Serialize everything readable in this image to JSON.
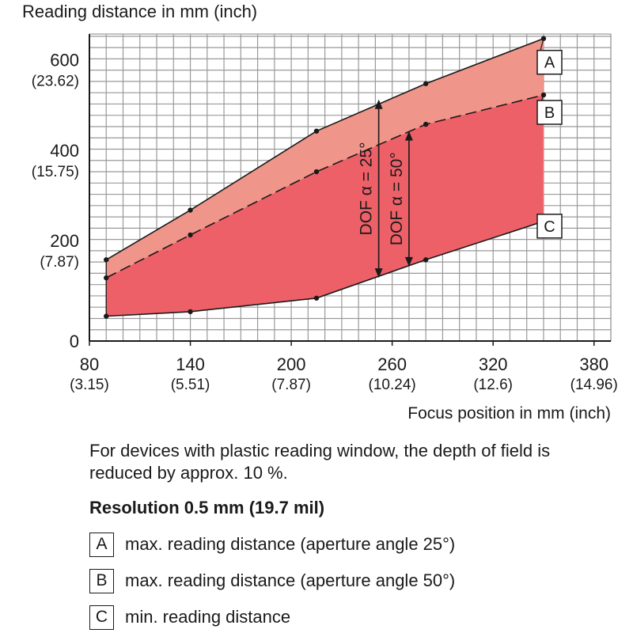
{
  "chart_data": {
    "type": "area",
    "ylabel": "Reading distance in mm (inch)",
    "xlabel": "Focus position in mm (inch)",
    "xlim": [
      80,
      390
    ],
    "ylim": [
      0,
      680
    ],
    "grid": true,
    "x_ticks": [
      {
        "value": 80,
        "mm": "80",
        "inch": "(3.15)"
      },
      {
        "value": 140,
        "mm": "140",
        "inch": "(5.51)"
      },
      {
        "value": 200,
        "mm": "200",
        "inch": "(7.87)"
      },
      {
        "value": 260,
        "mm": "260",
        "inch": "(10.24)"
      },
      {
        "value": 320,
        "mm": "320",
        "inch": "(12.6)"
      },
      {
        "value": 380,
        "mm": "380",
        "inch": "(14.96)"
      }
    ],
    "y_ticks": [
      {
        "value": 0,
        "mm": "0",
        "inch": ""
      },
      {
        "value": 200,
        "mm": "200",
        "inch": "(7.87)"
      },
      {
        "value": 400,
        "mm": "400",
        "inch": "(15.75)"
      },
      {
        "value": 600,
        "mm": "600",
        "inch": "(23.62)"
      }
    ],
    "series": [
      {
        "name": "A",
        "style": "solid",
        "x": [
          90,
          140,
          215,
          280,
          350
        ],
        "y": [
          180,
          290,
          465,
          570,
          670
        ]
      },
      {
        "name": "B",
        "style": "dashed",
        "x": [
          90,
          140,
          215,
          280,
          350
        ],
        "y": [
          140,
          235,
          375,
          480,
          545
        ]
      },
      {
        "name": "C",
        "style": "solid",
        "x": [
          90,
          140,
          215,
          280,
          350
        ],
        "y": [
          55,
          65,
          95,
          180,
          265
        ]
      }
    ],
    "annotations": [
      {
        "text": "DOF α = 25°",
        "x": 252,
        "y_from": 140,
        "y_to": 535
      },
      {
        "text": "DOF α = 50°",
        "x": 270,
        "y_from": 165,
        "y_to": 465
      }
    ]
  },
  "colors": {
    "band_upper": "#f0958a",
    "band_lower": "#ee6068",
    "grid": "#999999"
  },
  "note": "For devices with plastic reading window, the depth of field is reduced by approx. 10 %.",
  "resolution_title": "Resolution 0.5 mm (19.7 mil)",
  "legend": [
    {
      "key": "A",
      "text": "max. reading distance (aperture angle 25°)"
    },
    {
      "key": "B",
      "text": "max. reading distance (aperture angle 50°)"
    },
    {
      "key": "C",
      "text": "min. reading distance"
    }
  ]
}
